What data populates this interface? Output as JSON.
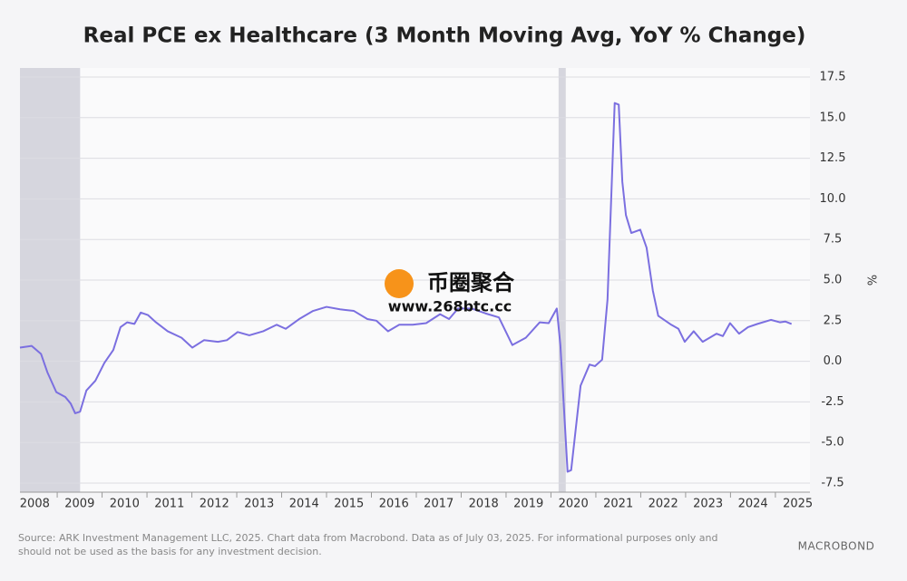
{
  "chart_data": {
    "type": "line",
    "title": "Real PCE ex Healthcare (3 Month Moving Avg, YoY % Change)",
    "y_label": "%",
    "x": [
      2008.17,
      2008.43,
      2008.64,
      2008.78,
      2008.98,
      2009.18,
      2009.3,
      2009.4,
      2009.51,
      2009.65,
      2009.85,
      2010.05,
      2010.25,
      2010.41,
      2010.56,
      2010.72,
      2010.86,
      2011.02,
      2011.2,
      2011.46,
      2011.77,
      2012.01,
      2012.27,
      2012.58,
      2012.78,
      2013.02,
      2013.28,
      2013.59,
      2013.89,
      2014.09,
      2014.39,
      2014.7,
      2015.0,
      2015.3,
      2015.61,
      2015.91,
      2016.11,
      2016.37,
      2016.62,
      2016.92,
      2017.22,
      2017.53,
      2017.73,
      2017.93,
      2018.23,
      2018.54,
      2018.84,
      2019.14,
      2019.44,
      2019.75,
      2019.95,
      2020.13,
      2020.21,
      2020.37,
      2020.45,
      2020.66,
      2020.86,
      2020.98,
      2021.14,
      2021.26,
      2021.42,
      2021.51,
      2021.59,
      2021.67,
      2021.79,
      2021.99,
      2022.13,
      2022.27,
      2022.39,
      2022.68,
      2022.84,
      2022.98,
      2023.18,
      2023.38,
      2023.69,
      2023.83,
      2023.99,
      2024.19,
      2024.39,
      2024.6,
      2024.9,
      2025.1,
      2025.22,
      2025.36
    ],
    "series": [
      {
        "color": "#7b6fe0",
        "values": [
          0.84,
          0.95,
          0.45,
          -0.67,
          -1.9,
          -2.2,
          -2.6,
          -3.2,
          -3.1,
          -1.8,
          -1.2,
          -0.1,
          0.7,
          2.1,
          2.4,
          2.3,
          3.0,
          2.85,
          2.4,
          1.85,
          1.45,
          0.84,
          1.3,
          1.2,
          1.3,
          1.8,
          1.6,
          1.85,
          2.25,
          2.0,
          2.6,
          3.1,
          3.35,
          3.2,
          3.1,
          2.6,
          2.5,
          1.85,
          2.25,
          2.25,
          2.35,
          2.9,
          2.6,
          3.25,
          3.25,
          2.95,
          2.7,
          1.0,
          1.45,
          2.4,
          2.35,
          3.25,
          1.0,
          -6.8,
          -6.7,
          -1.5,
          -0.2,
          -0.3,
          0.1,
          3.8,
          15.9,
          15.8,
          11.05,
          9.0,
          7.9,
          8.1,
          7.0,
          4.35,
          2.8,
          2.25,
          2.0,
          1.2,
          1.85,
          1.2,
          1.7,
          1.55,
          2.35,
          1.7,
          2.1,
          2.3,
          2.55,
          2.4,
          2.45,
          2.3
        ]
      }
    ],
    "shaded_periods": [
      [
        2008.17,
        2009.51
      ],
      [
        2020.17,
        2020.33
      ]
    ],
    "xlim": [
      2008.17,
      2025.77
    ],
    "xticks": [
      2008,
      2009,
      2010,
      2011,
      2012,
      2013,
      2014,
      2015,
      2016,
      2017,
      2018,
      2019,
      2020,
      2021,
      2022,
      2023,
      2024,
      2025
    ],
    "ylim": [
      -7.5,
      17.5
    ],
    "yticks": [
      {
        "value": -7.5,
        "label": "-7.5"
      },
      {
        "value": -5,
        "label": "-5.0"
      },
      {
        "value": -2.5,
        "label": "-2.5"
      },
      {
        "value": 0,
        "label": "0.0"
      },
      {
        "value": 2.5,
        "label": "2.5"
      },
      {
        "value": 5,
        "label": "5.0"
      },
      {
        "value": 7.5,
        "label": "7.5"
      },
      {
        "value": 10,
        "label": "10.0"
      },
      {
        "value": 12.5,
        "label": "12.5"
      },
      {
        "value": 15,
        "label": "15.0"
      },
      {
        "value": 17.5,
        "label": "17.5"
      }
    ],
    "grid": true,
    "source": [
      "Source: ARK Investment Management LLC, 2025. Chart data from Macrobond. Data as of July 03, 2025. For informational purposes only and",
      "should not be used as the basis for any investment decision."
    ],
    "logo": "MACROBOND",
    "watermark": [
      "币圈聚合",
      "www.268btc.cc"
    ]
  }
}
